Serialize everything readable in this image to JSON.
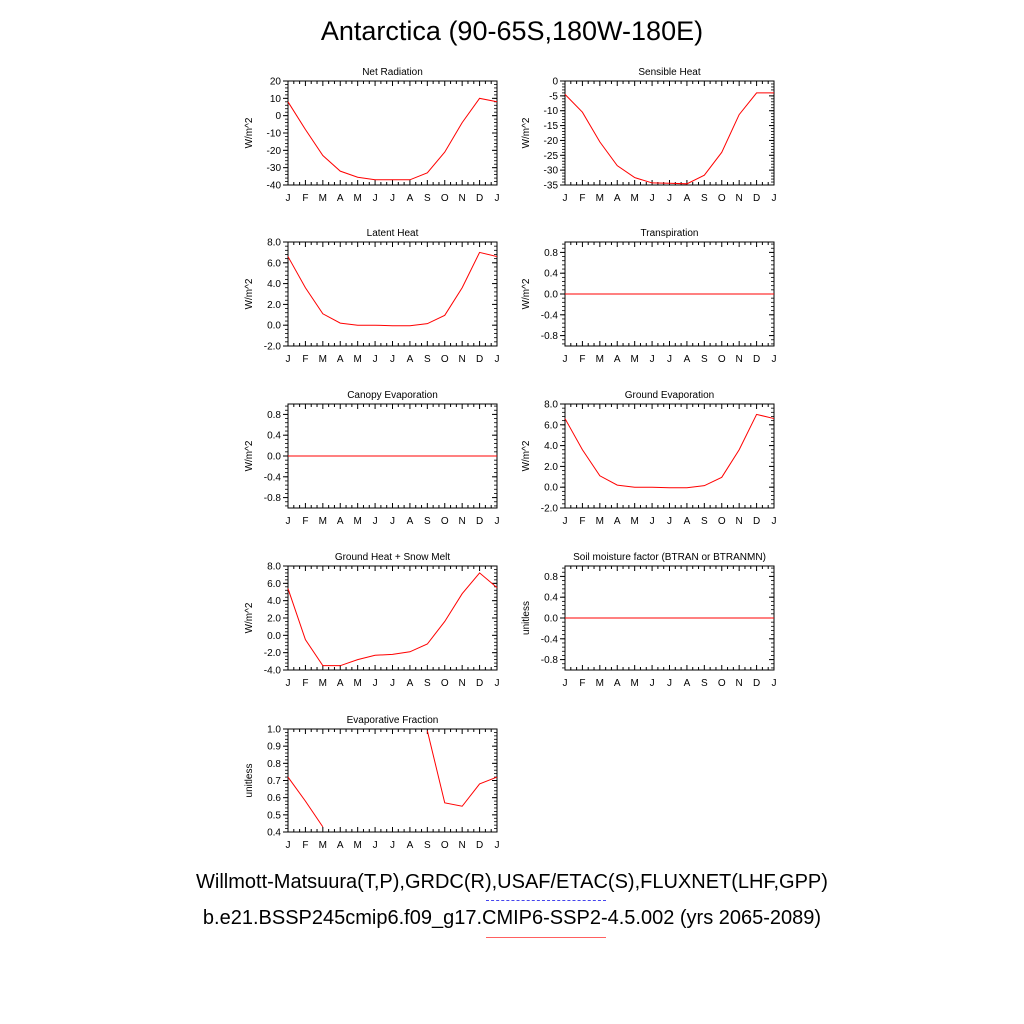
{
  "title": "Antarctica (90-65S,180W-180E)",
  "colors": {
    "model": "#ff0000",
    "observations": "#4444ee",
    "axis": "#000000"
  },
  "legend": {
    "observations": "Willmott-Matsuura(T,P),GRDC(R),USAF/ETAC(S),FLUXNET(LHF,GPP)",
    "model": "b.e21.BSSP245cmip6.f09_g17.CMIP6-SSP2-4.5.002 (yrs 2065-2089)"
  },
  "chart_data": [
    {
      "type": "line",
      "title": "Net Radiation",
      "ylabel": "W/m^2",
      "x": [
        "J",
        "F",
        "M",
        "A",
        "M",
        "J",
        "J",
        "A",
        "S",
        "O",
        "N",
        "D",
        "J"
      ],
      "ylim": [
        -40,
        20
      ],
      "yticks": [
        20,
        10,
        0,
        -10,
        -20,
        -30,
        -40
      ],
      "yticklabels": [
        "20",
        "10",
        "0",
        "-10",
        "-20",
        "-30",
        "-40"
      ],
      "series": [
        {
          "values": [
            8,
            -8,
            -23,
            -32,
            -35.5,
            -37,
            -37,
            -37,
            -33,
            -21,
            -4,
            10,
            8
          ]
        }
      ]
    },
    {
      "type": "line",
      "title": "Sensible Heat",
      "ylabel": "W/m^2",
      "x": [
        "J",
        "F",
        "M",
        "A",
        "M",
        "J",
        "J",
        "A",
        "S",
        "O",
        "N",
        "D",
        "J"
      ],
      "ylim": [
        -35,
        0
      ],
      "yticks": [
        0,
        -5,
        -10,
        -15,
        -20,
        -25,
        -30,
        -35
      ],
      "yticklabels": [
        "0",
        "-5",
        "-10",
        "-15",
        "-20",
        "-25",
        "-30",
        "-35"
      ],
      "series": [
        {
          "values": [
            -4.5,
            -10.5,
            -20.5,
            -28.5,
            -32.5,
            -34.3,
            -34.4,
            -34.6,
            -31.7,
            -24,
            -11.3,
            -4,
            -4
          ]
        }
      ]
    },
    {
      "type": "line",
      "title": "Latent Heat",
      "ylabel": "W/m^2",
      "x": [
        "J",
        "F",
        "M",
        "A",
        "M",
        "J",
        "J",
        "A",
        "S",
        "O",
        "N",
        "D",
        "J"
      ],
      "ylim": [
        -2,
        8
      ],
      "yticks": [
        8,
        6,
        4,
        2,
        0,
        -2
      ],
      "yticklabels": [
        "8.0",
        "6.0",
        "4.0",
        "2.0",
        "0.0",
        "-2.0"
      ],
      "series": [
        {
          "values": [
            6.6,
            3.6,
            1.1,
            0.2,
            0,
            0,
            -0.05,
            -0.05,
            0.15,
            0.95,
            3.6,
            7.0,
            6.6
          ]
        }
      ]
    },
    {
      "type": "line",
      "title": "Transpiration",
      "ylabel": "W/m^2",
      "x": [
        "J",
        "F",
        "M",
        "A",
        "M",
        "J",
        "J",
        "A",
        "S",
        "O",
        "N",
        "D",
        "J"
      ],
      "ylim": [
        -1,
        1
      ],
      "yticks": [
        0.8,
        0.4,
        0,
        -0.4,
        -0.8
      ],
      "yticklabels": [
        "0.8",
        "0.4",
        "0.0",
        "-0.4",
        "-0.8"
      ],
      "series": [
        {
          "values": [
            0,
            0,
            0,
            0,
            0,
            0,
            0,
            0,
            0,
            0,
            0,
            0,
            0
          ]
        }
      ]
    },
    {
      "type": "line",
      "title": "Canopy Evaporation",
      "ylabel": "W/m^2",
      "x": [
        "J",
        "F",
        "M",
        "A",
        "M",
        "J",
        "J",
        "A",
        "S",
        "O",
        "N",
        "D",
        "J"
      ],
      "ylim": [
        -1,
        1
      ],
      "yticks": [
        0.8,
        0.4,
        0,
        -0.4,
        -0.8
      ],
      "yticklabels": [
        "0.8",
        "0.4",
        "0.0",
        "-0.4",
        "-0.8"
      ],
      "series": [
        {
          "values": [
            0,
            0,
            0,
            0,
            0,
            0,
            0,
            0,
            0,
            0,
            0,
            0,
            0
          ]
        }
      ]
    },
    {
      "type": "line",
      "title": "Ground Evaporation",
      "ylabel": "W/m^2",
      "x": [
        "J",
        "F",
        "M",
        "A",
        "M",
        "J",
        "J",
        "A",
        "S",
        "O",
        "N",
        "D",
        "J"
      ],
      "ylim": [
        -2,
        8
      ],
      "yticks": [
        8,
        6,
        4,
        2,
        0,
        -2
      ],
      "yticklabels": [
        "8.0",
        "6.0",
        "4.0",
        "2.0",
        "0.0",
        "-2.0"
      ],
      "series": [
        {
          "values": [
            6.6,
            3.6,
            1.1,
            0.2,
            0,
            0,
            -0.05,
            -0.05,
            0.15,
            0.95,
            3.6,
            7.0,
            6.6
          ]
        }
      ]
    },
    {
      "type": "line",
      "title": "Ground Heat + Snow Melt",
      "ylabel": "W/m^2",
      "x": [
        "J",
        "F",
        "M",
        "A",
        "M",
        "J",
        "J",
        "A",
        "S",
        "O",
        "N",
        "D",
        "J"
      ],
      "ylim": [
        -4,
        8
      ],
      "yticks": [
        8,
        6,
        4,
        2,
        0,
        -2,
        -4
      ],
      "yticklabels": [
        "8.0",
        "6.0",
        "4.0",
        "2.0",
        "0.0",
        "-2.0",
        "-4.0"
      ],
      "series": [
        {
          "values": [
            5.4,
            -0.5,
            -3.5,
            -3.5,
            -2.8,
            -2.3,
            -2.2,
            -1.9,
            -1.0,
            1.6,
            4.8,
            7.2,
            5.5
          ]
        }
      ]
    },
    {
      "type": "line",
      "title": "Soil moisture factor (BTRAN or BTRANMN)",
      "ylabel": "unitless",
      "x": [
        "J",
        "F",
        "M",
        "A",
        "M",
        "J",
        "J",
        "A",
        "S",
        "O",
        "N",
        "D",
        "J"
      ],
      "ylim": [
        -1,
        1
      ],
      "yticks": [
        0.8,
        0.4,
        0,
        -0.4,
        -0.8
      ],
      "yticklabels": [
        "0.8",
        "0.4",
        "0.0",
        "-0.4",
        "-0.8"
      ],
      "series": [
        {
          "values": [
            0,
            0,
            0,
            0,
            0,
            0,
            0,
            0,
            0,
            0,
            0,
            0,
            0
          ]
        }
      ]
    },
    {
      "type": "line",
      "title": "Evaporative Fraction",
      "ylabel": "unitless",
      "x": [
        "J",
        "F",
        "M",
        "A",
        "M",
        "J",
        "J",
        "A",
        "S",
        "O",
        "N",
        "D",
        "J"
      ],
      "ylim": [
        0.4,
        1.0
      ],
      "yticks": [
        1.0,
        0.9,
        0.8,
        0.7,
        0.6,
        0.5,
        0.4
      ],
      "yticklabels": [
        "1.0",
        "0.9",
        "0.8",
        "0.7",
        "0.6",
        "0.5",
        "0.4"
      ],
      "series": [
        {
          "values": [
            0.72,
            0.58,
            0.43,
            null,
            null,
            null,
            null,
            null,
            0.99,
            0.57,
            0.55,
            0.68,
            0.72
          ]
        }
      ]
    }
  ]
}
